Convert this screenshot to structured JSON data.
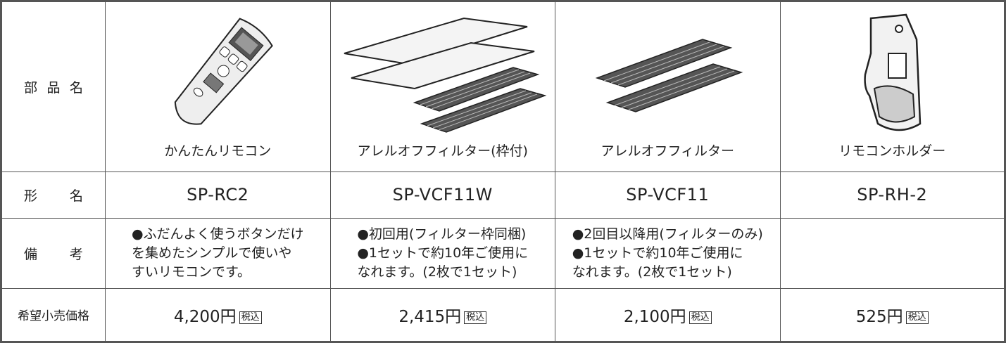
{
  "table": {
    "row_labels": [
      "部品名",
      "形名",
      "備考",
      "希望小売価格"
    ],
    "columns": [
      {
        "name": "かんたんリモコン",
        "model": "SP-RC2",
        "notes": [
          "●ふだんよく使うボタンだけ",
          "を集めたシンプルで使いや",
          "すいリモコンです。"
        ],
        "price": "4,200円",
        "tax": "税込"
      },
      {
        "name": "アレルオフフィルター(枠付)",
        "model": "SP-VCF11W",
        "notes": [
          "●初回用(フィルター枠同梱)",
          "●1セットで約10年ご使用に",
          "なれます。(2枚で1セット)"
        ],
        "price": "2,415円",
        "tax": "税込"
      },
      {
        "name": "アレルオフフィルター",
        "model": "SP-VCF11",
        "notes": [
          "●2回目以降用(フィルターのみ)",
          "●1セットで約10年ご使用に",
          "なれます。(2枚で1セット)"
        ],
        "price": "2,100円",
        "tax": "税込"
      },
      {
        "name": "リモコンホルダー",
        "model": "SP-RH-2",
        "notes": [],
        "price": "525円",
        "tax": "税込"
      }
    ]
  }
}
